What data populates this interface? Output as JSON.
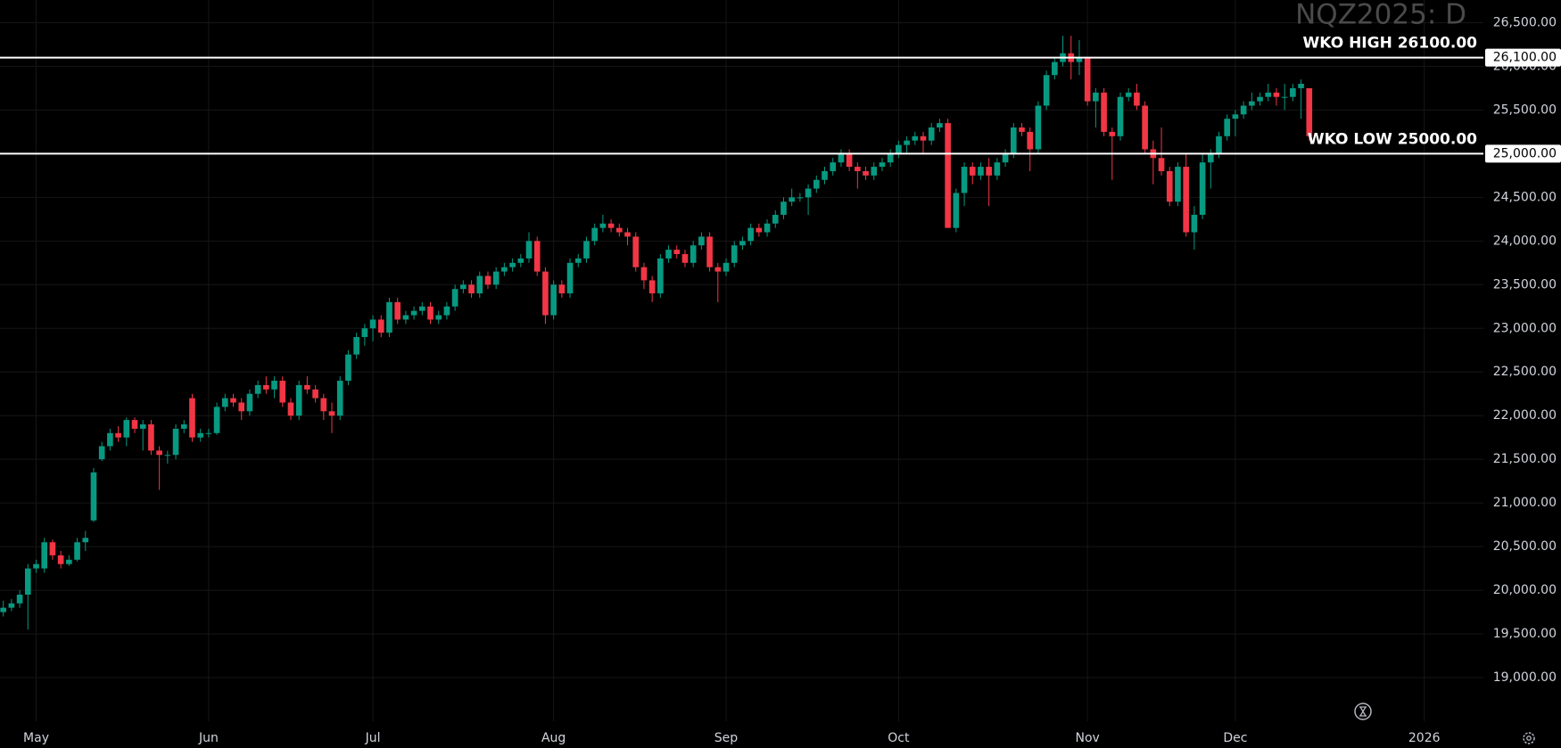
{
  "chart_data": {
    "type": "candlestick",
    "title": "NQZ2025: D",
    "up_color": "#089981",
    "down_color": "#f23645",
    "grid": true,
    "xlim": [
      -0.4,
      180.2
    ],
    "xticks": [
      {
        "value": 4,
        "label": "May"
      },
      {
        "value": 25,
        "label": "Jun"
      },
      {
        "value": 45,
        "label": "Jul"
      },
      {
        "value": 67,
        "label": "Aug"
      },
      {
        "value": 88,
        "label": "Sep"
      },
      {
        "value": 109,
        "label": "Oct"
      },
      {
        "value": 132,
        "label": "Nov"
      },
      {
        "value": 150,
        "label": "Dec"
      },
      {
        "value": 173,
        "label": "2026"
      }
    ],
    "ylim": [
      18500,
      26760
    ],
    "yticks": [
      {
        "value": 19000,
        "label": "19,000.00"
      },
      {
        "value": 19500,
        "label": "19,500.00"
      },
      {
        "value": 20000,
        "label": "20,000.00"
      },
      {
        "value": 20500,
        "label": "20,500.00"
      },
      {
        "value": 21000,
        "label": "21,000.00"
      },
      {
        "value": 21500,
        "label": "21,500.00"
      },
      {
        "value": 22000,
        "label": "22,000.00"
      },
      {
        "value": 22500,
        "label": "22,500.00"
      },
      {
        "value": 23000,
        "label": "23,000.00"
      },
      {
        "value": 23500,
        "label": "23,500.00"
      },
      {
        "value": 24000,
        "label": "24,000.00"
      },
      {
        "value": 24500,
        "label": "24,500.00"
      },
      {
        "value": 25000,
        "label": "25,000.00"
      },
      {
        "value": 25500,
        "label": "25,500.00"
      },
      {
        "value": 26000,
        "label": "26,000.00"
      },
      {
        "value": 26500,
        "label": "26,500.00"
      }
    ],
    "hlines": [
      {
        "value": 26100,
        "label": "WKO HIGH 26100.00",
        "tag": "26,100.00"
      },
      {
        "value": 25000,
        "label": "WKO LOW 25000.00",
        "tag": "25,000.00"
      }
    ],
    "ohlc": [
      [
        19750,
        19880,
        19700,
        19800
      ],
      [
        19800,
        19900,
        19760,
        19850
      ],
      [
        19850,
        20000,
        19800,
        19950
      ],
      [
        19950,
        20300,
        19550,
        20250
      ],
      [
        20250,
        20350,
        20200,
        20300
      ],
      [
        20250,
        20600,
        20200,
        20550
      ],
      [
        20550,
        20580,
        20350,
        20400
      ],
      [
        20400,
        20450,
        20250,
        20300
      ],
      [
        20300,
        20400,
        20280,
        20350
      ],
      [
        20350,
        20600,
        20330,
        20550
      ],
      [
        20550,
        20680,
        20450,
        20600
      ],
      [
        20800,
        21400,
        20780,
        21350
      ],
      [
        21500,
        21700,
        21480,
        21650
      ],
      [
        21650,
        21850,
        21600,
        21800
      ],
      [
        21800,
        21880,
        21700,
        21750
      ],
      [
        21750,
        21980,
        21650,
        21950
      ],
      [
        21950,
        21980,
        21800,
        21850
      ],
      [
        21850,
        21950,
        21600,
        21900
      ],
      [
        21900,
        21950,
        21550,
        21600
      ],
      [
        21600,
        21650,
        21150,
        21550
      ],
      [
        21550,
        21600,
        21450,
        21550
      ],
      [
        21550,
        21900,
        21500,
        21850
      ],
      [
        21850,
        21950,
        21800,
        21900
      ],
      [
        22200,
        22250,
        21700,
        21750
      ],
      [
        21750,
        21850,
        21700,
        21800
      ],
      [
        21800,
        21850,
        21750,
        21800
      ],
      [
        21800,
        22150,
        21780,
        22100
      ],
      [
        22100,
        22250,
        22050,
        22200
      ],
      [
        22200,
        22250,
        22100,
        22150
      ],
      [
        22150,
        22200,
        21950,
        22050
      ],
      [
        22050,
        22300,
        22000,
        22250
      ],
      [
        22250,
        22400,
        22200,
        22350
      ],
      [
        22350,
        22450,
        22250,
        22300
      ],
      [
        22300,
        22450,
        22200,
        22400
      ],
      [
        22400,
        22450,
        22100,
        22150
      ],
      [
        22150,
        22200,
        21950,
        22000
      ],
      [
        22000,
        22400,
        21950,
        22350
      ],
      [
        22350,
        22450,
        22250,
        22300
      ],
      [
        22300,
        22350,
        22150,
        22200
      ],
      [
        22200,
        22250,
        21950,
        22050
      ],
      [
        22050,
        22150,
        21800,
        22000
      ],
      [
        22000,
        22450,
        21950,
        22400
      ],
      [
        22400,
        22750,
        22350,
        22700
      ],
      [
        22700,
        22950,
        22650,
        22900
      ],
      [
        22900,
        23050,
        22800,
        23000
      ],
      [
        23000,
        23150,
        22850,
        23100
      ],
      [
        23100,
        23150,
        22900,
        22950
      ],
      [
        22950,
        23350,
        22900,
        23300
      ],
      [
        23300,
        23350,
        23050,
        23100
      ],
      [
        23100,
        23200,
        23050,
        23150
      ],
      [
        23150,
        23250,
        23100,
        23200
      ],
      [
        23200,
        23300,
        23150,
        23250
      ],
      [
        23250,
        23300,
        23050,
        23100
      ],
      [
        23100,
        23200,
        23050,
        23150
      ],
      [
        23150,
        23300,
        23100,
        23250
      ],
      [
        23250,
        23500,
        23200,
        23450
      ],
      [
        23450,
        23550,
        23400,
        23500
      ],
      [
        23500,
        23550,
        23350,
        23400
      ],
      [
        23400,
        23650,
        23350,
        23600
      ],
      [
        23600,
        23650,
        23450,
        23500
      ],
      [
        23500,
        23700,
        23450,
        23650
      ],
      [
        23650,
        23750,
        23600,
        23700
      ],
      [
        23700,
        23800,
        23650,
        23750
      ],
      [
        23750,
        23850,
        23700,
        23800
      ],
      [
        23800,
        24100,
        23750,
        24000
      ],
      [
        24000,
        24050,
        23600,
        23650
      ],
      [
        23650,
        23700,
        23050,
        23150
      ],
      [
        23150,
        23550,
        23100,
        23500
      ],
      [
        23500,
        23550,
        23350,
        23400
      ],
      [
        23400,
        23800,
        23350,
        23750
      ],
      [
        23750,
        23850,
        23700,
        23800
      ],
      [
        23800,
        24050,
        23750,
        24000
      ],
      [
        24000,
        24200,
        23950,
        24150
      ],
      [
        24150,
        24300,
        24100,
        24200
      ],
      [
        24200,
        24250,
        24100,
        24150
      ],
      [
        24150,
        24200,
        24050,
        24100
      ],
      [
        24100,
        24150,
        23950,
        24050
      ],
      [
        24050,
        24100,
        23650,
        23700
      ],
      [
        23700,
        23750,
        23450,
        23550
      ],
      [
        23550,
        23600,
        23300,
        23400
      ],
      [
        23400,
        23850,
        23350,
        23800
      ],
      [
        23800,
        23950,
        23750,
        23900
      ],
      [
        23900,
        23950,
        23800,
        23850
      ],
      [
        23850,
        23900,
        23700,
        23750
      ],
      [
        23750,
        24000,
        23700,
        23950
      ],
      [
        23950,
        24100,
        23900,
        24050
      ],
      [
        24050,
        24100,
        23650,
        23700
      ],
      [
        23700,
        23750,
        23300,
        23650
      ],
      [
        23650,
        23800,
        23600,
        23750
      ],
      [
        23750,
        24000,
        23700,
        23950
      ],
      [
        23950,
        24050,
        23900,
        24000
      ],
      [
        24000,
        24200,
        23950,
        24150
      ],
      [
        24150,
        24200,
        24050,
        24100
      ],
      [
        24100,
        24250,
        24050,
        24200
      ],
      [
        24200,
        24350,
        24150,
        24300
      ],
      [
        24300,
        24500,
        24250,
        24450
      ],
      [
        24450,
        24600,
        24400,
        24500
      ],
      [
        24500,
        24550,
        24450,
        24500
      ],
      [
        24500,
        24650,
        24300,
        24600
      ],
      [
        24600,
        24750,
        24550,
        24700
      ],
      [
        24700,
        24850,
        24650,
        24800
      ],
      [
        24800,
        24950,
        24750,
        24900
      ],
      [
        24900,
        25050,
        24850,
        25000
      ],
      [
        25000,
        25050,
        24800,
        24850
      ],
      [
        24850,
        24900,
        24600,
        24800
      ],
      [
        24800,
        24850,
        24700,
        24750
      ],
      [
        24750,
        24900,
        24700,
        24850
      ],
      [
        24850,
        24950,
        24800,
        24900
      ],
      [
        24900,
        25050,
        24850,
        25000
      ],
      [
        25000,
        25150,
        24950,
        25100
      ],
      [
        25100,
        25200,
        25000,
        25150
      ],
      [
        25150,
        25250,
        25100,
        25200
      ],
      [
        25200,
        25250,
        25000,
        25150
      ],
      [
        25150,
        25350,
        25100,
        25300
      ],
      [
        25300,
        25400,
        25250,
        25350
      ],
      [
        25350,
        25400,
        24150,
        24150
      ],
      [
        24150,
        24600,
        24100,
        24550
      ],
      [
        24550,
        24900,
        24400,
        24850
      ],
      [
        24850,
        24900,
        24650,
        24750
      ],
      [
        24750,
        24900,
        24700,
        24850
      ],
      [
        24850,
        24950,
        24400,
        24750
      ],
      [
        24750,
        24950,
        24700,
        24900
      ],
      [
        24900,
        25050,
        24850,
        25000
      ],
      [
        25000,
        25350,
        24950,
        25300
      ],
      [
        25300,
        25350,
        25200,
        25250
      ],
      [
        25250,
        25300,
        24800,
        25050
      ],
      [
        25050,
        25600,
        25000,
        25550
      ],
      [
        25550,
        25950,
        25500,
        25900
      ],
      [
        25900,
        26100,
        25850,
        26050
      ],
      [
        26050,
        26350,
        26000,
        26150
      ],
      [
        26150,
        26350,
        25850,
        26050
      ],
      [
        26050,
        26300,
        25900,
        26100
      ],
      [
        26100,
        26100,
        25550,
        25600
      ],
      [
        25600,
        25750,
        25300,
        25700
      ],
      [
        25700,
        25750,
        25200,
        25250
      ],
      [
        25250,
        25300,
        24700,
        25200
      ],
      [
        25200,
        25700,
        25150,
        25650
      ],
      [
        25650,
        25750,
        25600,
        25700
      ],
      [
        25700,
        25800,
        25500,
        25550
      ],
      [
        25550,
        25600,
        25000,
        25050
      ],
      [
        25050,
        25150,
        24650,
        24950
      ],
      [
        24950,
        25300,
        24750,
        24800
      ],
      [
        24800,
        24850,
        24400,
        24450
      ],
      [
        24450,
        24900,
        24400,
        24850
      ],
      [
        24850,
        25000,
        24050,
        24100
      ],
      [
        24100,
        24400,
        23900,
        24300
      ],
      [
        24300,
        25000,
        24250,
        24900
      ],
      [
        24900,
        25050,
        24600,
        25000
      ],
      [
        25000,
        25250,
        24950,
        25200
      ],
      [
        25200,
        25450,
        25150,
        25400
      ],
      [
        25400,
        25500,
        25200,
        25450
      ],
      [
        25450,
        25600,
        25400,
        25550
      ],
      [
        25550,
        25700,
        25500,
        25600
      ],
      [
        25600,
        25700,
        25550,
        25650
      ],
      [
        25650,
        25800,
        25600,
        25700
      ],
      [
        25700,
        25750,
        25550,
        25650
      ],
      [
        25650,
        25800,
        25500,
        25650
      ],
      [
        25650,
        25800,
        25600,
        25750
      ],
      [
        25750,
        25850,
        25400,
        25800
      ],
      [
        25750,
        25750,
        25150,
        25200
      ]
    ]
  }
}
